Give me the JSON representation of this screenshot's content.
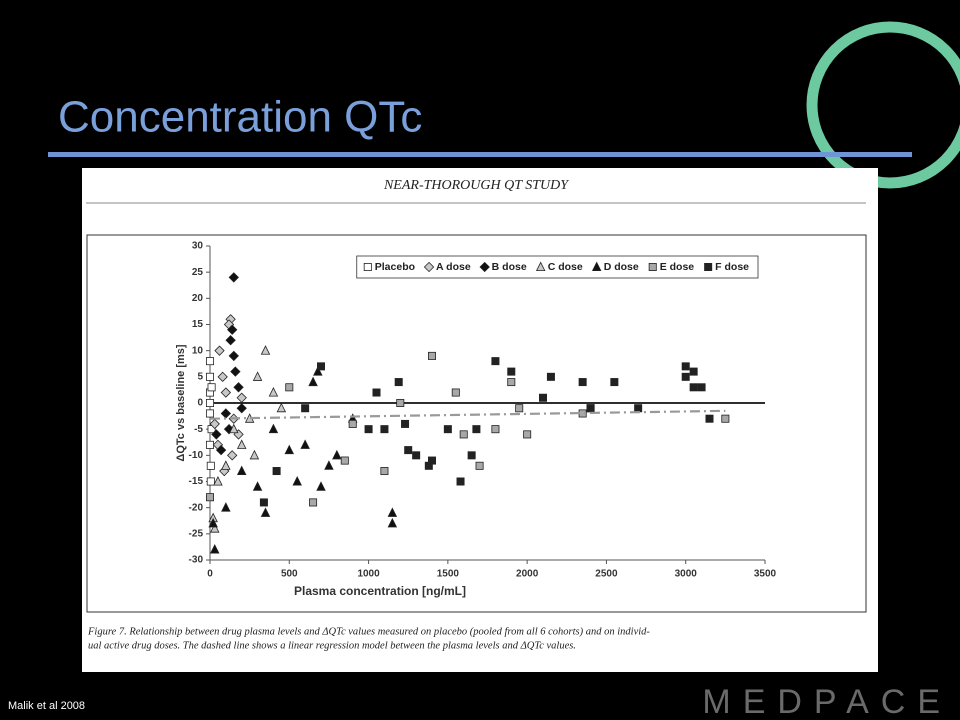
{
  "slide_title": "Concentration QTc",
  "citation": "Malik et al 2008",
  "logo": "MEDPACE",
  "caption": [
    "Figure 7.    Relationship between drug plasma levels and ΔQTc values measured on placebo (pooled from all 6 cohorts) and on individ-",
    "ual active drug doses. The dashed line shows a linear regression model between the plasma levels and ΔQTc values."
  ],
  "chart_data": {
    "type": "scatter",
    "title": "NEAR-THOROUGH QT STUDY",
    "xlabel": "Plasma concentration [ng/mL]",
    "ylabel": "ΔQTc vs baseline [ms]",
    "xlim": [
      0,
      3500
    ],
    "ylim": [
      -30,
      30
    ],
    "xticks": [
      0,
      500,
      1000,
      1500,
      2000,
      2500,
      3000,
      3500
    ],
    "yticks": [
      -30,
      -25,
      -20,
      -15,
      -10,
      -5,
      0,
      5,
      10,
      15,
      20,
      25,
      30
    ],
    "legend": "top-right",
    "reference_line_y": 0,
    "regression": {
      "color": "#999999",
      "x": [
        0,
        3250
      ],
      "y": [
        -3,
        -1.5
      ]
    },
    "series": [
      {
        "name": "Placebo",
        "color": "#ffffff",
        "marker": "square",
        "x": [
          0,
          0,
          0,
          5,
          0,
          10,
          0,
          5,
          0,
          10
        ],
        "y": [
          5,
          -2,
          -8,
          -12,
          2,
          -5,
          8,
          -15,
          0,
          3
        ]
      },
      {
        "name": "A dose",
        "color": "#c8c8c8",
        "marker": "diamond",
        "x": [
          130,
          120,
          80,
          150,
          50,
          100,
          180,
          60,
          140,
          30,
          200,
          90
        ],
        "y": [
          16,
          15,
          5,
          -3,
          -8,
          2,
          -6,
          10,
          -10,
          -4,
          1,
          -13
        ]
      },
      {
        "name": "B dose",
        "color": "#111111",
        "marker": "diamond",
        "x": [
          150,
          140,
          130,
          160,
          100,
          180,
          70,
          120,
          200,
          40,
          150
        ],
        "y": [
          24,
          14,
          12,
          6,
          -2,
          3,
          -9,
          -5,
          -1,
          -6,
          9
        ]
      },
      {
        "name": "C dose",
        "color": "#c8c8c8",
        "marker": "triangle",
        "x": [
          30,
          20,
          350,
          300,
          250,
          200,
          100,
          400,
          150,
          50,
          450,
          280
        ],
        "y": [
          -24,
          -22,
          10,
          5,
          -3,
          -8,
          -12,
          2,
          -5,
          -15,
          -1,
          -10
        ]
      },
      {
        "name": "D dose",
        "color": "#111111",
        "marker": "triangle",
        "x": [
          30,
          20,
          100,
          350,
          300,
          550,
          700,
          650,
          680,
          1150,
          1150,
          800,
          600,
          400,
          750,
          900,
          500,
          200
        ],
        "y": [
          -28,
          -23,
          -20,
          -21,
          -16,
          -15,
          -16,
          4,
          6,
          -21,
          -23,
          -10,
          -8,
          -5,
          -12,
          -3,
          -9,
          -13
        ]
      },
      {
        "name": "E dose",
        "color": "#a8a8a8",
        "marker": "square",
        "x": [
          0,
          1400,
          1100,
          1800,
          1600,
          2000,
          1900,
          1950,
          2350,
          3250,
          1700,
          900,
          1200,
          650,
          1550,
          2400,
          850,
          500
        ],
        "y": [
          -18,
          9,
          -13,
          -5,
          -6,
          -6,
          4,
          -1,
          -2,
          -3,
          -12,
          -4,
          0,
          -19,
          2,
          -1,
          -11,
          3
        ]
      },
      {
        "name": "F dose",
        "color": "#222222",
        "marker": "square",
        "x": [
          1800,
          1900,
          2150,
          2350,
          2550,
          3000,
          3050,
          3050,
          3100,
          3000,
          3150,
          2700,
          2400,
          2100,
          1650,
          1300,
          1100,
          1000,
          1250,
          1380,
          1500,
          1680,
          1190,
          1050,
          700,
          340,
          420,
          600,
          1400,
          1230,
          1580
        ],
        "y": [
          8,
          6,
          5,
          4,
          4,
          5,
          6,
          3,
          3,
          7,
          -3,
          -1,
          -1,
          1,
          -10,
          -10,
          -5,
          -5,
          -9,
          -12,
          -5,
          -5,
          4,
          2,
          7,
          -19,
          -13,
          -1,
          -11,
          -4,
          -15
        ]
      }
    ]
  }
}
